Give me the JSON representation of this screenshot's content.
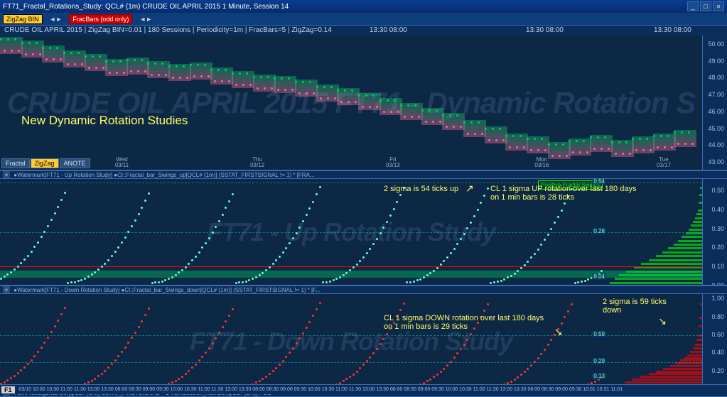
{
  "titlebar": {
    "text": "FT71_Fractal_Rotations_Study: QCL# (1m) CRUDE OIL APRIL 2015 1 Minute, Session 14"
  },
  "toolbar": {
    "zigzag_label": "ZigZag BIN",
    "fracbars_btn": "FracBars (odd only)"
  },
  "header": {
    "text": "CRUDE OIL APRIL 2015  |  ZigZag BIN=0.01  |  180 Sessions | Periodicity=1m  | FracBars=5  | ZigZag=0.14",
    "time_marks": [
      "13:30  08:00",
      "13:30  08:00",
      "13:30  08:00"
    ]
  },
  "panel_main": {
    "watermark": "CRUDE OIL APRIL 2015 FT71 - Dynamic Rotation S",
    "annot_title": "New Dynamic Rotation Studies",
    "y_ticks": [
      50.0,
      49.0,
      48.0,
      47.0,
      46.0,
      45.0,
      44.0,
      43.0
    ],
    "ylim": [
      42.5,
      50.5
    ],
    "x_dates": [
      "Wed 03/11",
      "Thu 03/12",
      "Fri 03/13",
      "Mon 03/16",
      "Tue 03/17"
    ],
    "tabs": [
      "Fractal",
      "ZigZag",
      "ANOTE"
    ],
    "band_series": [
      {
        "x": 0.0,
        "y": 49.9
      },
      {
        "x": 0.03,
        "y": 49.7
      },
      {
        "x": 0.06,
        "y": 49.4
      },
      {
        "x": 0.09,
        "y": 49.1
      },
      {
        "x": 0.12,
        "y": 48.9
      },
      {
        "x": 0.15,
        "y": 48.6
      },
      {
        "x": 0.18,
        "y": 48.7
      },
      {
        "x": 0.21,
        "y": 48.5
      },
      {
        "x": 0.24,
        "y": 48.3
      },
      {
        "x": 0.27,
        "y": 48.4
      },
      {
        "x": 0.3,
        "y": 48.1
      },
      {
        "x": 0.33,
        "y": 47.9
      },
      {
        "x": 0.36,
        "y": 47.7
      },
      {
        "x": 0.39,
        "y": 47.6
      },
      {
        "x": 0.42,
        "y": 47.4
      },
      {
        "x": 0.45,
        "y": 47.1
      },
      {
        "x": 0.48,
        "y": 46.9
      },
      {
        "x": 0.51,
        "y": 46.6
      },
      {
        "x": 0.54,
        "y": 46.3
      },
      {
        "x": 0.57,
        "y": 46.0
      },
      {
        "x": 0.6,
        "y": 45.7
      },
      {
        "x": 0.63,
        "y": 45.4
      },
      {
        "x": 0.66,
        "y": 45.0
      },
      {
        "x": 0.69,
        "y": 44.6
      },
      {
        "x": 0.72,
        "y": 44.2
      },
      {
        "x": 0.75,
        "y": 44.0
      },
      {
        "x": 0.78,
        "y": 43.7
      },
      {
        "x": 0.81,
        "y": 43.9
      },
      {
        "x": 0.84,
        "y": 44.1
      },
      {
        "x": 0.87,
        "y": 43.8
      },
      {
        "x": 0.9,
        "y": 44.0
      },
      {
        "x": 0.93,
        "y": 44.2
      },
      {
        "x": 0.96,
        "y": 44.4
      }
    ],
    "band_color_top": "#00cc66",
    "band_color_bot": "#ff6699"
  },
  "panel_up": {
    "sub_head": "●Watermark[FT71 - Up Rotation Study]  ●CI::Fractal_bar_Swings_up[QCL# (1m)] (SSTAT_FIRSTSIGNAL != 1) * [FRA...",
    "watermark": "FT71 - Up Rotation Study",
    "annot_left": "2 sigma is 54 ticks up",
    "annot_right": "CL 1 sigma UP rotation over last 180 days on 1 min bars is 28 ticks",
    "legend_box": "Positive Fractal Swings",
    "y_ticks": [
      0.5,
      0.4,
      0.3,
      0.2,
      0.1,
      0.0
    ],
    "ylim": [
      0.0,
      0.56
    ],
    "dash_lines": [
      0.54,
      0.28
    ],
    "red_line": 0.1,
    "green_band": [
      0.04,
      0.08
    ],
    "val_labels": [
      {
        "v": 0.54,
        "t": "0.54"
      },
      {
        "v": 0.28,
        "t": "0.28"
      },
      {
        "v": 0.04,
        "t": "0.04"
      }
    ],
    "hist_bars": [
      {
        "v": 0.02,
        "w": 1.0
      },
      {
        "v": 0.04,
        "w": 0.95
      },
      {
        "v": 0.06,
        "w": 0.9
      },
      {
        "v": 0.08,
        "w": 0.82
      },
      {
        "v": 0.1,
        "w": 0.74
      },
      {
        "v": 0.12,
        "w": 0.66
      },
      {
        "v": 0.14,
        "w": 0.58
      },
      {
        "v": 0.16,
        "w": 0.5
      },
      {
        "v": 0.18,
        "w": 0.43
      },
      {
        "v": 0.2,
        "w": 0.37
      },
      {
        "v": 0.22,
        "w": 0.31
      },
      {
        "v": 0.24,
        "w": 0.26
      },
      {
        "v": 0.26,
        "w": 0.22
      },
      {
        "v": 0.28,
        "w": 0.18
      },
      {
        "v": 0.3,
        "w": 0.15
      },
      {
        "v": 0.32,
        "w": 0.12
      },
      {
        "v": 0.34,
        "w": 0.1
      },
      {
        "v": 0.36,
        "w": 0.08
      },
      {
        "v": 0.38,
        "w": 0.06
      },
      {
        "v": 0.4,
        "w": 0.05
      },
      {
        "v": 0.44,
        "w": 0.04
      },
      {
        "v": 0.48,
        "w": 0.03
      },
      {
        "v": 0.52,
        "w": 0.02
      }
    ],
    "scatter_color": "#66ffcc"
  },
  "panel_down": {
    "sub_head": "●Watermark[FT71 - Down Rotation Study]  ●CI::Fractal_bar_Swings_down[QCL# (1m)] (SSTAT_FIRSTSIGNAL != 1) * [F...",
    "watermark": "FT71 - Down Rotation Study",
    "annot_left": "CL 1 sigma DOWN rotation over last 180 days on 1 min bars is 29 ticks",
    "annot_right": "2 sigma is 59 ticks down",
    "y_ticks": [
      1.0,
      0.8,
      0.6,
      0.4,
      0.2
    ],
    "ylim": [
      0.0,
      1.05
    ],
    "dash_lines": [
      0.59,
      0.29
    ],
    "val_labels": [
      {
        "v": 0.59,
        "t": "0.59"
      },
      {
        "v": 0.29,
        "t": "0.29"
      },
      {
        "v": 0.13,
        "t": "0.13"
      }
    ],
    "hist_bars": [
      {
        "v": 0.02,
        "w": 1.0
      },
      {
        "v": 0.05,
        "w": 0.92
      },
      {
        "v": 0.08,
        "w": 0.84
      },
      {
        "v": 0.11,
        "w": 0.76
      },
      {
        "v": 0.14,
        "w": 0.68
      },
      {
        "v": 0.17,
        "w": 0.58
      },
      {
        "v": 0.2,
        "w": 0.5
      },
      {
        "v": 0.23,
        "w": 0.42
      },
      {
        "v": 0.26,
        "w": 0.35
      },
      {
        "v": 0.29,
        "w": 0.29
      },
      {
        "v": 0.32,
        "w": 0.24
      },
      {
        "v": 0.35,
        "w": 0.2
      },
      {
        "v": 0.38,
        "w": 0.16
      },
      {
        "v": 0.42,
        "w": 0.13
      },
      {
        "v": 0.46,
        "w": 0.1
      },
      {
        "v": 0.5,
        "w": 0.08
      },
      {
        "v": 0.55,
        "w": 0.06
      },
      {
        "v": 0.6,
        "w": 0.05
      },
      {
        "v": 0.7,
        "w": 0.04
      },
      {
        "v": 0.8,
        "w": 0.03
      },
      {
        "v": 0.95,
        "w": 0.02
      }
    ],
    "scatter_color": "#ff3333"
  },
  "footer": {
    "sub_head": "●CI::FracSigsNumber[QCL# (1m)] SSTAT_FIRSTSIGNAL = 1  ●CI::Session_Number[QCL# (1m)] POS",
    "f1": "F1",
    "time_scale": "03/10  10:00  10:30  11:00  11:30  13:00  13:30  08:00  08:30  09:00  09:30  10:00  10:30  11:00  11:30  13:00  13:30  08:00  08:30  09:00  09:30  10:00  10:30  11:00  11:30  13:00  13:30  08:00  08:30  09:00  09:30  10:00  10:30  11:00  11:30  13:00  13:30  08:00  08:30  09:00  09:30  10:01  10:31  11:01"
  }
}
